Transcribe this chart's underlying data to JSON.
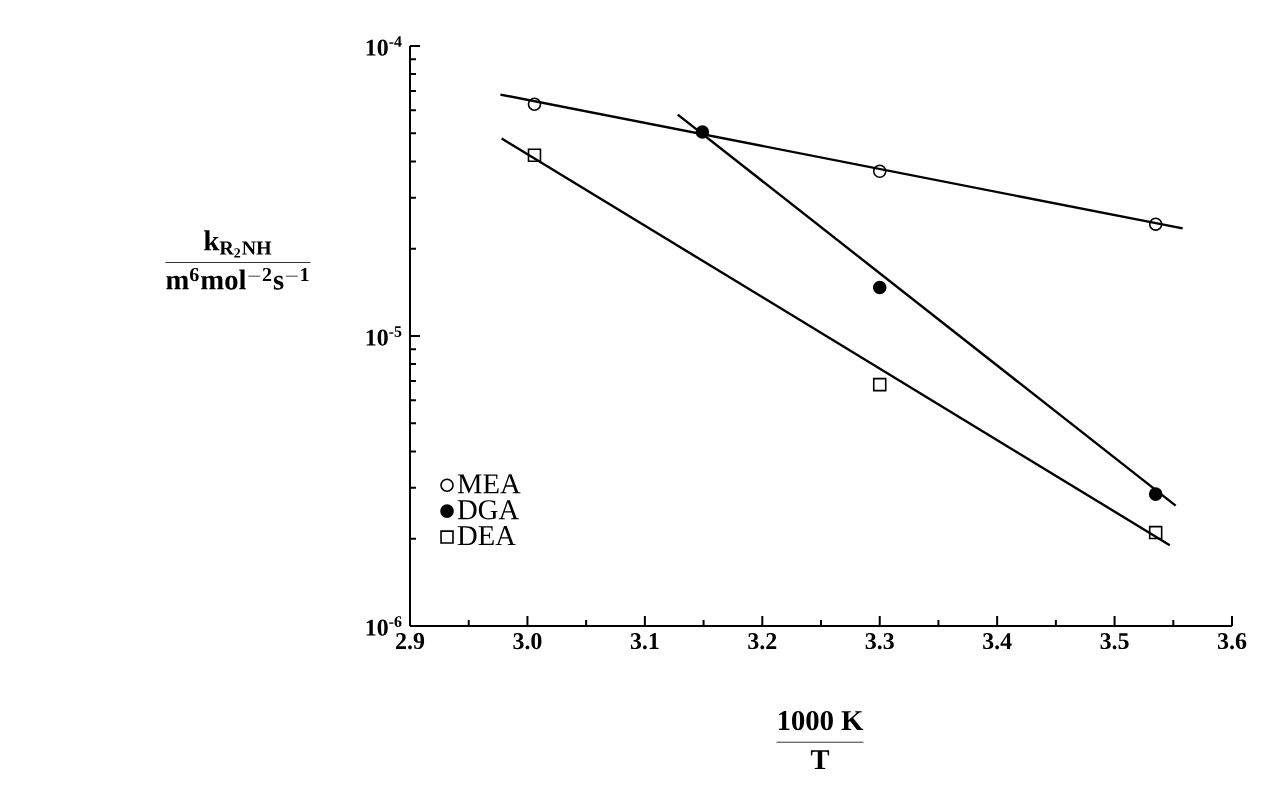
{
  "chart_data": {
    "type": "scatter",
    "xlabel": "\\frac{\\mathbf{1000\\ K}}{\\mathbf{T}}",
    "ylabel": "\\frac{\\mathbf{k_{R_2NH}}}{\\mathbf{m^6mol^{-2}s^{-1}}}",
    "xlim": [
      2.9,
      3.6
    ],
    "xticks": [
      2.9,
      {
        "value": 3,
        "label": "3.0"
      },
      3.1,
      3.2,
      3.3,
      3.4,
      3.5,
      3.6
    ],
    "ylim": [
      1e-06,
      0.0001
    ],
    "yticks": [
      {
        "value": 1e-06,
        "label": "10$^{-6}$"
      },
      {
        "value": 1e-05,
        "label": "10$^{-5}$"
      },
      {
        "value": 0.0001,
        "label": "10$^{-4}$"
      }
    ],
    "log": true,
    "legend": "bottom left",
    "series": [
      {
        "name": "MEA",
        "marker": "circle",
        "color": "#000000",
        "x": [
          3.006,
          3.3,
          3.535
        ],
        "values": [
          6.3e-05,
          3.7e-05,
          2.43e-05
        ]
      },
      {
        "name": "DGA",
        "marker": "filled circle",
        "color": "#000000",
        "x": [
          3.149,
          3.3,
          3.535
        ],
        "values": [
          5.05e-05,
          1.47e-05,
          2.85e-06
        ]
      },
      {
        "name": "DEA",
        "marker": "square",
        "color": "#000000",
        "x": [
          3.006,
          3.3,
          3.535
        ],
        "values": [
          4.2e-05,
          6.8e-06,
          2.1e-06
        ]
      },
      {
        "type": "line",
        "color": "#000000",
        "x": [
          2.977,
          3.558
        ],
        "values": [
          6.8e-05,
          2.35e-05
        ]
      },
      {
        "type": "line",
        "color": "#000000",
        "x": [
          3.128,
          3.552
        ],
        "values": [
          5.8e-05,
          2.6e-06
        ]
      },
      {
        "type": "line",
        "color": "#000000",
        "x": [
          2.978,
          3.547
        ],
        "values": [
          4.8e-05,
          1.9e-06
        ]
      }
    ]
  }
}
